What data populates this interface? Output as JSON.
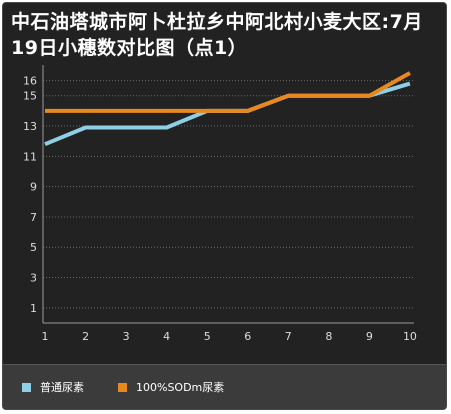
{
  "chart_data": {
    "type": "line",
    "title": "中石油塔城市阿卜杜拉乡中阿北村小麦大区:7月19日小穗数对比图（点1）",
    "x": [
      1,
      2,
      3,
      4,
      5,
      6,
      7,
      8,
      9,
      10
    ],
    "xticks": [
      "1",
      "2",
      "3",
      "4",
      "5",
      "6",
      "7",
      "8",
      "9",
      "10"
    ],
    "yticks": [
      1,
      3,
      5,
      7,
      9,
      11,
      13,
      15,
      16
    ],
    "ylim": [
      0,
      16.5
    ],
    "xlim": [
      0.95,
      10.1
    ],
    "grid": true,
    "legend_position": "bottom",
    "series": [
      {
        "name": "普通尿素",
        "color": "#8ecfe6",
        "values": [
          11.8,
          12.9,
          12.9,
          12.9,
          14,
          14,
          15,
          15,
          15,
          15.8
        ]
      },
      {
        "name": "100%SODm尿素",
        "color": "#e8891e",
        "values": [
          14,
          14,
          14,
          14,
          14,
          14,
          15,
          15,
          15,
          16.5
        ]
      }
    ]
  }
}
